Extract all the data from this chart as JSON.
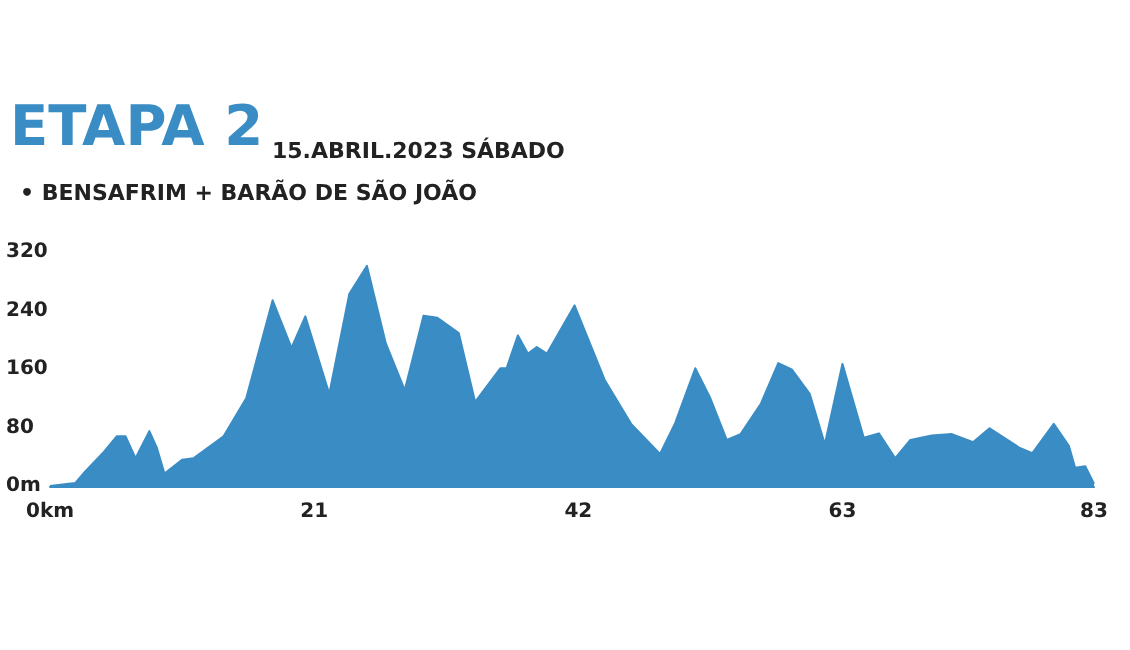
{
  "chart_data": {
    "type": "area",
    "title": "ETAPA 2",
    "subtitle": "15.ABRIL.2023 SÁBADO",
    "annotations": [
      "• BENSAFRIM + BARÃO DE SÃO JOÃO"
    ],
    "x": [
      0,
      2.0,
      2.8,
      4.3,
      5.3,
      6.0,
      6.8,
      7.9,
      8.5,
      9.1,
      10.5,
      11.4,
      13.8,
      15.6,
      17.7,
      19.2,
      20.3,
      22.2,
      23.8,
      25.2,
      26.7,
      28.2,
      29.7,
      30.8,
      32.5,
      33.8,
      35.8,
      36.3,
      37.2,
      38.0,
      38.7,
      39.5,
      41.7,
      44.1,
      46.2,
      48.5,
      49.7,
      51.3,
      52.5,
      53.8,
      54.9,
      56.5,
      57.9,
      59.0,
      60.4,
      61.6,
      63,
      64.7,
      65.9,
      67.2,
      68.4,
      70.1,
      71.7,
      73.4,
      74.7,
      77.1,
      78.1,
      79.8,
      81.0,
      81.5,
      82.3,
      83
    ],
    "series": [
      {
        "color": "#3a8cc4",
        "values": [
          0,
          4,
          20,
          47,
          68,
          68,
          38,
          75,
          52,
          17,
          36,
          38,
          68,
          120,
          254,
          189,
          232,
          126,
          263,
          301,
          195,
          131,
          233,
          230,
          209,
          115,
          161,
          161,
          206,
          181,
          190,
          181,
          247,
          145,
          85,
          44,
          86,
          161,
          120,
          63,
          71,
          112,
          168,
          159,
          126,
          57,
          167,
          66,
          72,
          38,
          63,
          69,
          71,
          60,
          79,
          52,
          45,
          85,
          55,
          25,
          27,
          3
        ]
      }
    ],
    "xlim": [
      0,
      83
    ],
    "xticks": [
      {
        "value": 0,
        "label": "0km"
      },
      21,
      42,
      63,
      83
    ],
    "ylim": [
      0,
      320
    ],
    "yticks": [
      {
        "value": 0,
        "label": "0m"
      },
      80,
      160,
      240,
      320
    ],
    "grid": false,
    "marker": "none"
  }
}
